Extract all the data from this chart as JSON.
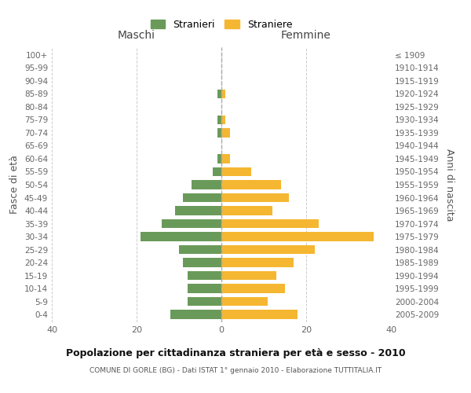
{
  "age_groups": [
    "0-4",
    "5-9",
    "10-14",
    "15-19",
    "20-24",
    "25-29",
    "30-34",
    "35-39",
    "40-44",
    "45-49",
    "50-54",
    "55-59",
    "60-64",
    "65-69",
    "70-74",
    "75-79",
    "80-84",
    "85-89",
    "90-94",
    "95-99",
    "100+"
  ],
  "birth_years": [
    "2005-2009",
    "2000-2004",
    "1995-1999",
    "1990-1994",
    "1985-1989",
    "1980-1984",
    "1975-1979",
    "1970-1974",
    "1965-1969",
    "1960-1964",
    "1955-1959",
    "1950-1954",
    "1945-1949",
    "1940-1944",
    "1935-1939",
    "1930-1934",
    "1925-1929",
    "1920-1924",
    "1915-1919",
    "1910-1914",
    "≤ 1909"
  ],
  "maschi": [
    12,
    8,
    8,
    8,
    9,
    10,
    19,
    14,
    11,
    9,
    7,
    2,
    1,
    0,
    1,
    1,
    0,
    1,
    0,
    0,
    0
  ],
  "femmine": [
    18,
    11,
    15,
    13,
    17,
    22,
    36,
    23,
    12,
    16,
    14,
    7,
    2,
    0,
    2,
    1,
    0,
    1,
    0,
    0,
    0
  ],
  "color_maschi": "#6a9a5a",
  "color_femmine": "#f5b731",
  "title": "Popolazione per cittadinanza straniera per età e sesso - 2010",
  "subtitle": "COMUNE DI GORLE (BG) - Dati ISTAT 1° gennaio 2010 - Elaborazione TUTTITALIA.IT",
  "xlabel_left": "Maschi",
  "xlabel_right": "Femmine",
  "ylabel_left": "Fasce di età",
  "ylabel_right": "Anni di nascita",
  "legend_maschi": "Stranieri",
  "legend_femmine": "Straniere",
  "xlim": 40,
  "background_color": "#ffffff",
  "grid_color": "#cccccc"
}
